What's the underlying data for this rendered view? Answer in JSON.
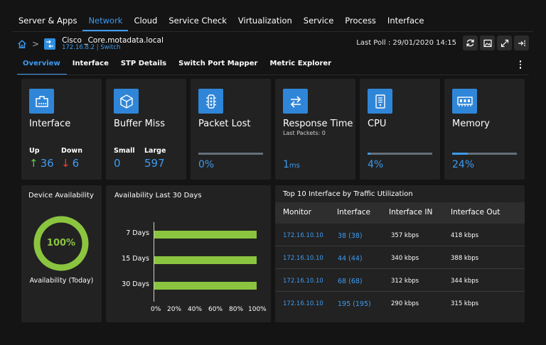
{
  "nav": {
    "items": [
      "Server & Apps",
      "Network",
      "Cloud",
      "Service Check",
      "Virtualization",
      "Service",
      "Process",
      "Interface"
    ],
    "active": "Network"
  },
  "breadcrumb": {
    "device_name": "Cisco _Core.motadata.local",
    "device_sub": "172.16.8.2 | Switch"
  },
  "poll": {
    "text": "Last Poll :  29/01/2020 14:15"
  },
  "toolbar": {
    "icons": [
      "refresh-icon",
      "image-icon",
      "expand-icon",
      "collapse-panel-icon"
    ]
  },
  "subtabs": {
    "items": [
      "Overview",
      "Interface",
      "STP Details",
      "Switch Port Mapper",
      "Metric Explorer"
    ],
    "active": "Overview"
  },
  "tiles": {
    "interface": {
      "title": "Interface",
      "up_label": "Up",
      "up_value": "36",
      "down_label": "Down",
      "down_value": "6"
    },
    "buffer": {
      "title": "Buffer Miss",
      "small_label": "Small",
      "small_value": "0",
      "large_label": "Large",
      "large_value": "597"
    },
    "packet": {
      "title": "Packet Lost",
      "value": "0%",
      "percent": 0
    },
    "response": {
      "title": "Response Time",
      "sub": "Last Packets: 0",
      "value": "1",
      "unit": "ms"
    },
    "cpu": {
      "title": "CPU",
      "value": "4%",
      "percent": 4
    },
    "memory": {
      "title": "Memory",
      "value": "24%",
      "percent": 24
    }
  },
  "availability": {
    "title": "Device Availability",
    "value": "100%",
    "percent": 100,
    "caption": "Availability (Today)"
  },
  "chart_data": {
    "type": "bar",
    "orientation": "horizontal",
    "title": "Availability Last 30 Days",
    "categories": [
      "7 Days",
      "15 Days",
      "30 Days"
    ],
    "values": [
      100,
      100,
      100
    ],
    "xlim": [
      0,
      100
    ],
    "xticks": [
      "0%",
      "20%",
      "40%",
      "60%",
      "80%",
      "100%"
    ],
    "color": "#8bc53f"
  },
  "top10": {
    "title": "Top 10 Interface by Traffic Utilization",
    "columns": [
      "Monitor",
      "Interface",
      "Interface IN",
      "Interface Out"
    ],
    "rows": [
      {
        "monitor": "172.16.10.10",
        "interface": "38 (38)",
        "in": "357 kbps",
        "out": "418 kbps"
      },
      {
        "monitor": "172.16.10.10",
        "interface": "44 (44)",
        "in": "340 kbps",
        "out": "388 kbps"
      },
      {
        "monitor": "172.16.10.10",
        "interface": "68 (68)",
        "in": "312 kbps",
        "out": "344 kbps"
      },
      {
        "monitor": "172.16.10.10",
        "interface": "195 (195)",
        "in": "290 kbps",
        "out": "315 kbps"
      }
    ]
  },
  "colors": {
    "accent": "#3d9bf0",
    "tile_icon": "#2f86d8",
    "up": "#62c94b",
    "down": "#e8402f",
    "bar": "#8bc53f"
  }
}
